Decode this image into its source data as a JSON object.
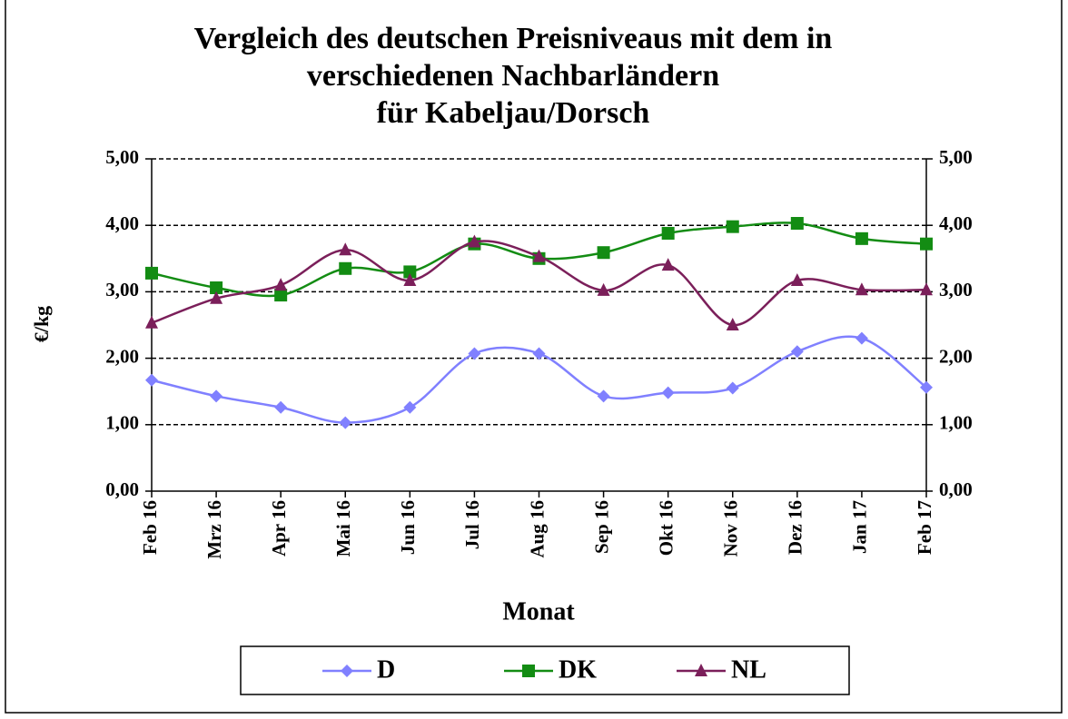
{
  "chart_data": {
    "type": "line",
    "title": [
      "Vergleich des deutschen Preisniveaus mit dem in",
      "verschiedenen Nachbarländern",
      "für Kabeljau/Dorsch"
    ],
    "xlabel": "Monat",
    "ylabel": "€/kg",
    "categories": [
      "Feb 16",
      "Mrz 16",
      "Apr 16",
      "Mai 16",
      "Jun 16",
      "Jul 16",
      "Aug 16",
      "Sep 16",
      "Okt 16",
      "Nov 16",
      "Dez 16",
      "Jan 17",
      "Feb 17"
    ],
    "series": [
      {
        "name": "D",
        "color": "#8080ff",
        "marker": "diamond",
        "values": [
          1.67,
          1.43,
          1.26,
          1.03,
          1.26,
          2.07,
          2.07,
          1.43,
          1.48,
          1.55,
          2.1,
          2.3,
          1.56
        ]
      },
      {
        "name": "DK",
        "color": "#138c13",
        "marker": "square",
        "values": [
          3.28,
          3.06,
          2.95,
          3.35,
          3.3,
          3.72,
          3.5,
          3.59,
          3.88,
          3.98,
          4.03,
          3.8,
          3.72
        ]
      },
      {
        "name": "NL",
        "color": "#7b1f5a",
        "marker": "triangle",
        "values": [
          2.53,
          2.9,
          3.1,
          3.63,
          3.17,
          3.75,
          3.53,
          3.02,
          3.4,
          2.5,
          3.17,
          3.03,
          3.03
        ]
      }
    ],
    "ylim": [
      0,
      5
    ],
    "yticks": [
      {
        "value": 0,
        "label": "0,00"
      },
      {
        "value": 1,
        "label": "1,00"
      },
      {
        "value": 2,
        "label": "2,00"
      },
      {
        "value": 3,
        "label": "3,00"
      },
      {
        "value": 4,
        "label": "4,00"
      },
      {
        "value": 5,
        "label": "5,00"
      }
    ],
    "y2lim": [
      0,
      5
    ],
    "y2ticks": [
      {
        "value": 0,
        "label": "0,00"
      },
      {
        "value": 1,
        "label": "1,00"
      },
      {
        "value": 2,
        "label": "2,00"
      },
      {
        "value": 3,
        "label": "3,00"
      },
      {
        "value": 4,
        "label": "4,00"
      },
      {
        "value": 5,
        "label": "5,00"
      }
    ],
    "grid": true,
    "smooth": true,
    "legend": "bottom"
  }
}
